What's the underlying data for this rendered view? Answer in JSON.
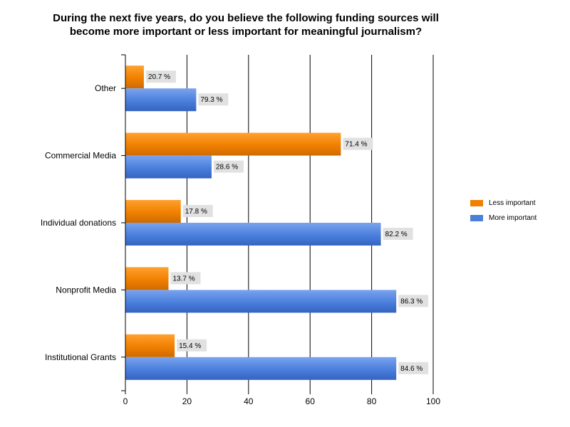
{
  "chart_data": {
    "type": "bar",
    "orientation": "horizontal",
    "title_lines": [
      "During the next five years, do you believe the following funding sources will",
      "become more important or less important for meaningful journalism?"
    ],
    "categories": [
      "Other",
      "Commercial Media",
      "Individual donations",
      "Nonprofit Media",
      "Institutional Grants"
    ],
    "series": [
      {
        "name": "Less important",
        "color": "#f08000",
        "values": [
          6,
          70,
          18,
          14,
          16
        ],
        "labels": [
          "20.7 %",
          "71.4 %",
          "17.8 %",
          "13.7 %",
          "15.4 %"
        ]
      },
      {
        "name": "More important",
        "color": "#4a7fdc",
        "values": [
          23,
          28,
          83,
          88,
          88
        ],
        "labels": [
          "79.3 %",
          "28.6 %",
          "82.2 %",
          "86.3 %",
          "84.6 %"
        ]
      }
    ],
    "xlim": [
      0,
      100
    ],
    "xticks": [
      "0",
      "20",
      "40",
      "60",
      "80",
      "100"
    ],
    "grid": true,
    "legend_position": "right"
  }
}
